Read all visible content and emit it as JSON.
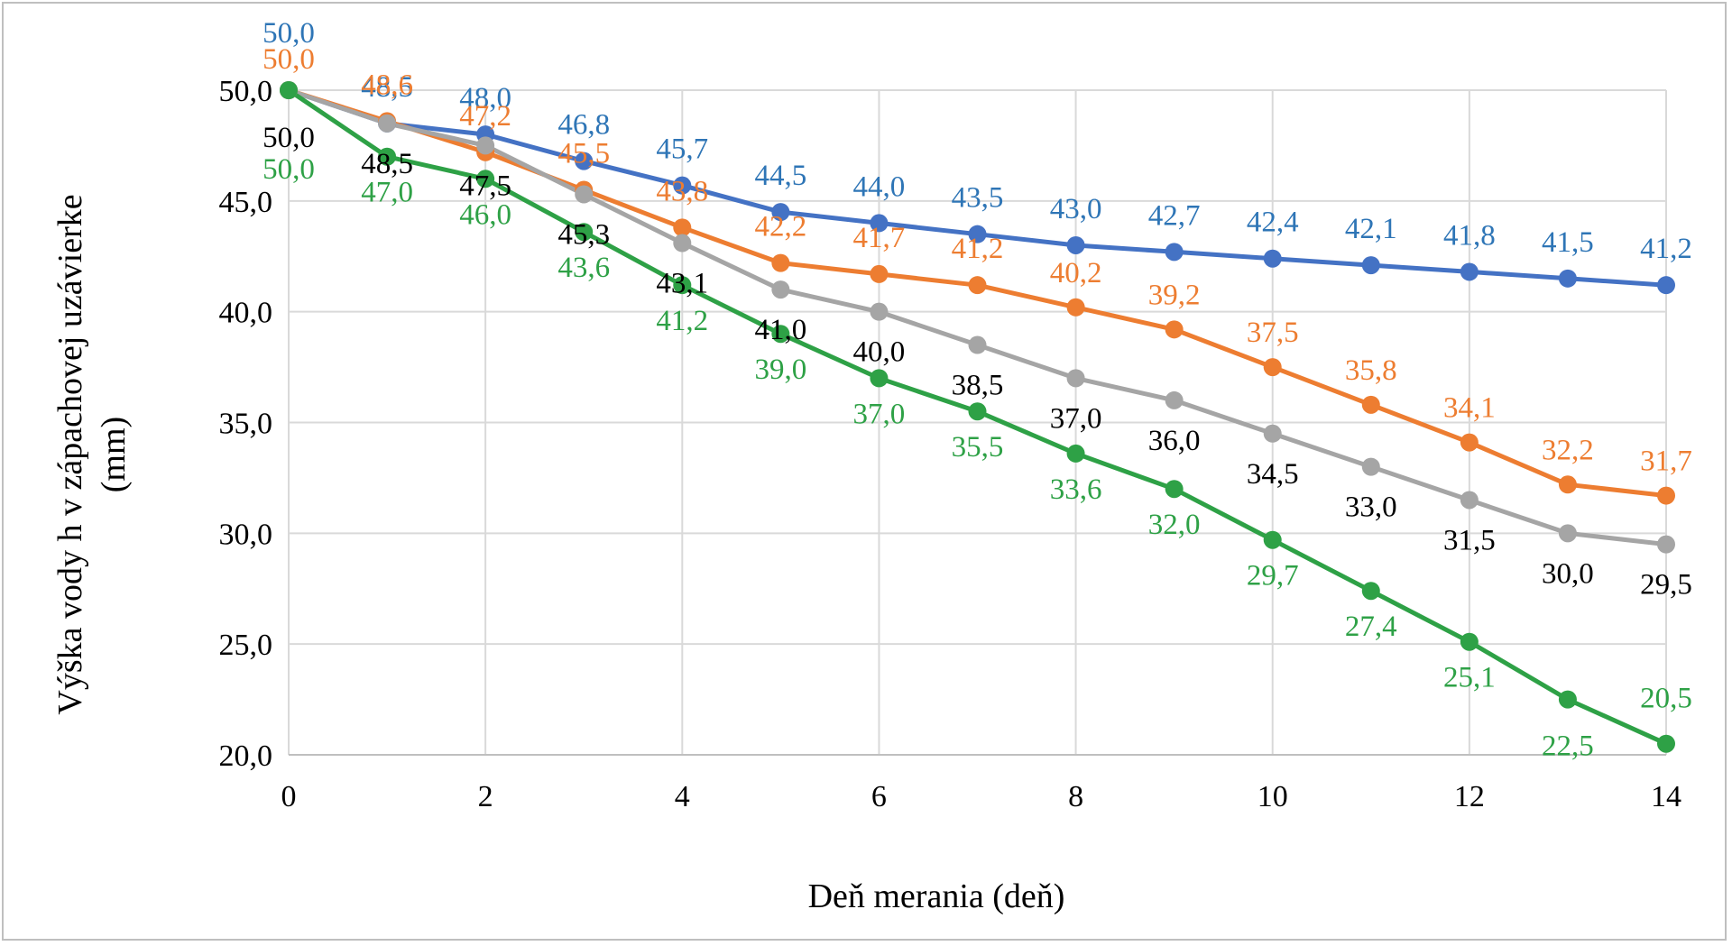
{
  "chart_data": {
    "type": "line",
    "title": "",
    "xlabel": "Deň merania (deň)",
    "ylabel_line1": "Výška vody h v zápachovej uzávierke",
    "ylabel_line2": "(mm)",
    "xlim": [
      0,
      14
    ],
    "ylim": [
      20,
      50
    ],
    "x_ticks": [
      "0",
      "2",
      "4",
      "6",
      "8",
      "10",
      "12",
      "14"
    ],
    "y_ticks": [
      "20,0",
      "25,0",
      "30,0",
      "35,0",
      "40,0",
      "45,0",
      "50,0"
    ],
    "grid": true,
    "legend": "none",
    "x": [
      0,
      1,
      2,
      3,
      4,
      5,
      6,
      7,
      8,
      9,
      10,
      11,
      12,
      13,
      14
    ],
    "series": [
      {
        "color": "#4472c4",
        "label_color": "#2e75b6",
        "values": [
          50.0,
          48.5,
          48.0,
          46.8,
          45.7,
          44.5,
          44.0,
          43.5,
          43.0,
          42.7,
          42.4,
          42.1,
          41.8,
          41.5,
          41.2
        ],
        "labels": [
          "50,0",
          "48,5",
          "48,0",
          "46,8",
          "45,7",
          "44,5",
          "44,0",
          "43,5",
          "43,0",
          "42,7",
          "42,4",
          "42,1",
          "41,8",
          "41,5",
          "41,2"
        ]
      },
      {
        "color": "#ed7d31",
        "label_color": "#ed7d31",
        "values": [
          50.0,
          48.6,
          47.2,
          45.5,
          43.8,
          42.2,
          41.7,
          41.2,
          40.2,
          39.2,
          37.5,
          35.8,
          34.1,
          32.2,
          31.7
        ],
        "labels": [
          "50,0",
          "48,6",
          "47,2",
          "45,5",
          "43,8",
          "42,2",
          "41,7",
          "41,2",
          "40,2",
          "39,2",
          "37,5",
          "35,8",
          "34,1",
          "32,2",
          "31,7"
        ]
      },
      {
        "color": "#a5a5a5",
        "label_color": "#000000",
        "values": [
          50.0,
          48.5,
          47.5,
          45.3,
          43.1,
          41.0,
          40.0,
          38.5,
          37.0,
          36.0,
          34.5,
          33.0,
          31.5,
          30.0,
          29.5
        ],
        "labels": [
          "50,0",
          "48,5",
          "47,5",
          "45,3",
          "43,1",
          "41,0",
          "40,0",
          "38,5",
          "37,0",
          "36,0",
          "34,5",
          "33,0",
          "31,5",
          "30,0",
          "29,5"
        ]
      },
      {
        "color": "#2ea146",
        "label_color": "#2ea146",
        "values": [
          50.0,
          47.0,
          46.0,
          43.6,
          41.2,
          39.0,
          37.0,
          35.5,
          33.6,
          32.0,
          29.7,
          27.4,
          25.1,
          22.5,
          20.5
        ],
        "labels": [
          "50,0",
          "47,0",
          "46,0",
          "43,6",
          "41,2",
          "39,0",
          "37,0",
          "35,5",
          "33,6",
          "32,0",
          "29,7",
          "27,4",
          "25,1",
          "22,5",
          "20,5"
        ]
      }
    ]
  }
}
